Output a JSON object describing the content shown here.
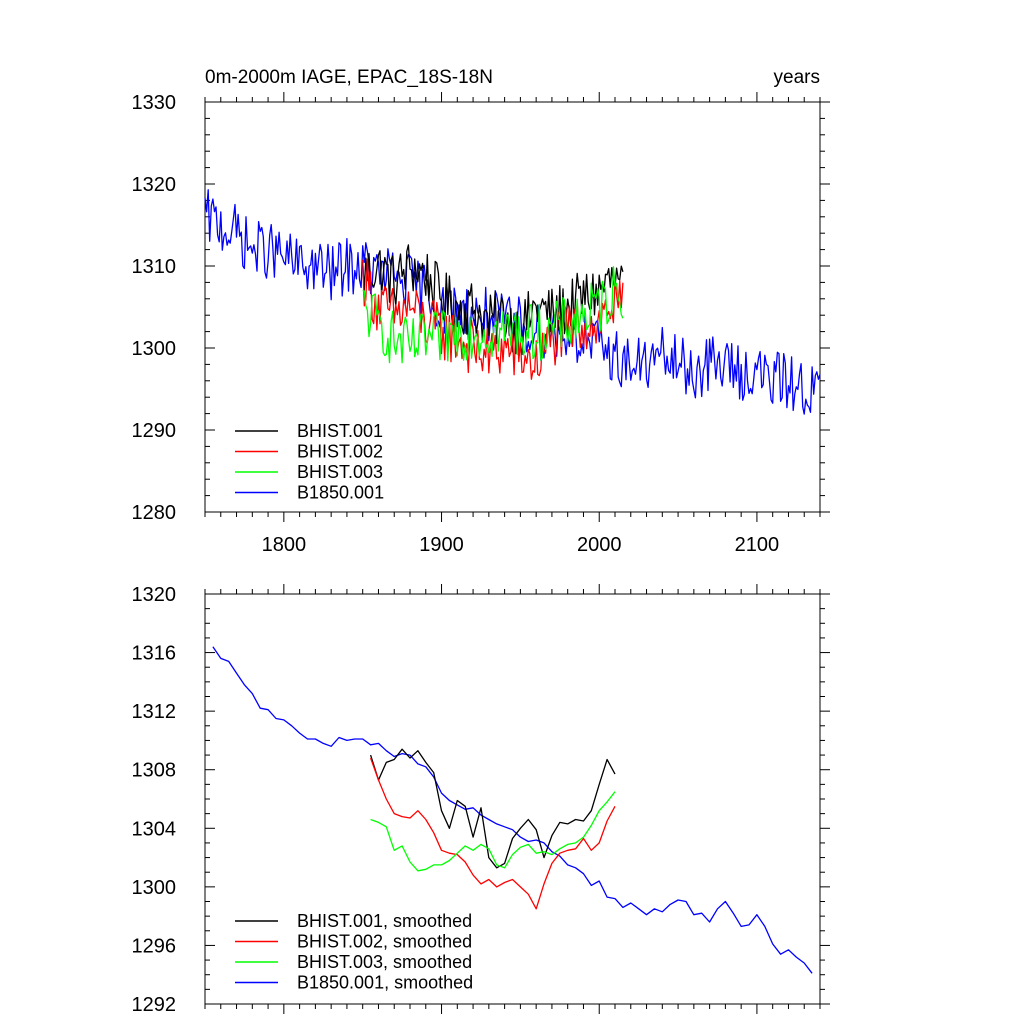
{
  "chart_data": [
    {
      "type": "line",
      "title": "0m-2000m IAGE, EPAC_18S-18N",
      "units": "years",
      "xlim": [
        1750,
        2140
      ],
      "ylim": [
        1280,
        1330
      ],
      "x_ticks": [
        1800,
        1900,
        2000,
        2100
      ],
      "x_tick_labels": [
        "1800",
        "1900",
        "2000",
        "2100"
      ],
      "y_ticks": [
        1280,
        1290,
        1300,
        1310,
        1320,
        1330
      ],
      "y_tick_labels": [
        "1280",
        "1290",
        "1300",
        "1310",
        "1320",
        "1330"
      ],
      "legend_position": "bottom-left",
      "series": [
        {
          "name": "BHIST.001",
          "color": "#000000",
          "x": [
            1850,
            1860,
            1870,
            1880,
            1890,
            1900,
            1910,
            1920,
            1930,
            1940,
            1950,
            1960,
            1970,
            1980,
            1990,
            2000,
            2005,
            2010,
            2015
          ],
          "y": [
            1309,
            1310,
            1308,
            1310,
            1309,
            1306,
            1305,
            1305,
            1303,
            1304,
            1302,
            1305,
            1304,
            1305,
            1306,
            1307,
            1308,
            1308,
            1307
          ]
        },
        {
          "name": "BHIST.002",
          "color": "#ff0000",
          "x": [
            1850,
            1860,
            1870,
            1880,
            1890,
            1900,
            1910,
            1920,
            1930,
            1940,
            1950,
            1960,
            1970,
            1980,
            1990,
            2000,
            2005,
            2010,
            2015
          ],
          "y": [
            1309,
            1305,
            1304,
            1305,
            1303,
            1302,
            1301,
            1300,
            1299,
            1300,
            1299,
            1298,
            1301,
            1302,
            1303,
            1303,
            1305,
            1305,
            1305
          ]
        },
        {
          "name": "BHIST.003",
          "color": "#00ff00",
          "x": [
            1850,
            1860,
            1870,
            1880,
            1890,
            1900,
            1910,
            1920,
            1930,
            1940,
            1950,
            1960,
            1970,
            1980,
            1990,
            2000,
            2005,
            2010,
            2015
          ],
          "y": [
            1305,
            1303,
            1301,
            1300,
            1301,
            1301,
            1302,
            1302,
            1302,
            1302,
            1302,
            1302,
            1302,
            1303,
            1304,
            1305,
            1306,
            1307,
            1307
          ]
        },
        {
          "name": "B1850.001",
          "color": "#0000ff",
          "x": [
            1750,
            1760,
            1770,
            1780,
            1790,
            1800,
            1810,
            1820,
            1830,
            1840,
            1850,
            1860,
            1870,
            1880,
            1890,
            1900,
            1910,
            1920,
            1930,
            1940,
            1950,
            1960,
            1970,
            1980,
            1990,
            2000,
            2010,
            2020,
            2030,
            2040,
            2050,
            2060,
            2070,
            2080,
            2090,
            2100,
            2110,
            2120,
            2130,
            2140
          ],
          "y": [
            1316,
            1315,
            1314,
            1312,
            1312,
            1311,
            1310,
            1310,
            1309,
            1310,
            1310,
            1309,
            1309,
            1308,
            1307,
            1305,
            1305,
            1304,
            1304,
            1303,
            1303,
            1302,
            1302,
            1302,
            1301,
            1300,
            1299,
            1298,
            1298,
            1299,
            1298,
            1297,
            1298,
            1298,
            1297,
            1297,
            1296,
            1296,
            1295,
            1295
          ]
        }
      ]
    },
    {
      "type": "line",
      "xlim": [
        1750,
        2140
      ],
      "ylim": [
        1292,
        1320
      ],
      "x_ticks": [
        1800,
        1900,
        2000,
        2100
      ],
      "y_ticks": [
        1292,
        1296,
        1300,
        1304,
        1308,
        1312,
        1316,
        1320
      ],
      "y_tick_labels": [
        "1292",
        "1296",
        "1300",
        "1304",
        "1308",
        "1312",
        "1316",
        "1320"
      ],
      "legend_position": "bottom-left",
      "series": [
        {
          "name": "BHIST.001, smoothed",
          "color": "#000000",
          "x": [
            1855,
            1860,
            1865,
            1870,
            1875,
            1880,
            1885,
            1890,
            1895,
            1900,
            1905,
            1910,
            1915,
            1920,
            1925,
            1930,
            1935,
            1940,
            1945,
            1950,
            1955,
            1960,
            1965,
            1970,
            1975,
            1980,
            1985,
            1990,
            1995,
            2000,
            2005,
            2010
          ],
          "y": [
            1309,
            1307.3,
            1308.5,
            1308.7,
            1309.4,
            1308.8,
            1309.3,
            1308.5,
            1307.8,
            1305.2,
            1304,
            1305.9,
            1305.5,
            1303.4,
            1305.4,
            1302,
            1301.3,
            1301.6,
            1303.3,
            1304,
            1304.6,
            1303.9,
            1302,
            1303.5,
            1304.4,
            1304.3,
            1304.6,
            1304.5,
            1305.2,
            1307,
            1308.7,
            1307.7
          ]
        },
        {
          "name": "BHIST.002, smoothed",
          "color": "#ff0000",
          "x": [
            1855,
            1860,
            1865,
            1870,
            1875,
            1880,
            1885,
            1890,
            1895,
            1900,
            1905,
            1910,
            1915,
            1920,
            1925,
            1930,
            1935,
            1940,
            1945,
            1950,
            1955,
            1960,
            1965,
            1970,
            1975,
            1980,
            1985,
            1990,
            1995,
            2000,
            2005,
            2010
          ],
          "y": [
            1308.8,
            1307.3,
            1306,
            1305,
            1304.8,
            1304.7,
            1305.2,
            1304.6,
            1303.7,
            1302.5,
            1302.3,
            1302.2,
            1301.7,
            1300.8,
            1300.2,
            1300.5,
            1300,
            1300.3,
            1300.5,
            1300,
            1299.5,
            1298.5,
            1300.2,
            1301.6,
            1302.3,
            1302.5,
            1302.6,
            1303.3,
            1302.5,
            1303,
            1304.5,
            1305.5
          ]
        },
        {
          "name": "BHIST.003, smoothed",
          "color": "#00ff00",
          "x": [
            1855,
            1860,
            1865,
            1870,
            1875,
            1880,
            1885,
            1890,
            1895,
            1900,
            1905,
            1910,
            1915,
            1920,
            1925,
            1930,
            1935,
            1940,
            1945,
            1950,
            1955,
            1960,
            1965,
            1970,
            1975,
            1980,
            1985,
            1990,
            1995,
            2000,
            2005,
            2010
          ],
          "y": [
            1304.6,
            1304.4,
            1304.1,
            1302.5,
            1302.8,
            1301.7,
            1301.1,
            1301.2,
            1301.5,
            1301.5,
            1301.8,
            1302.3,
            1302.8,
            1302.5,
            1302.9,
            1302.6,
            1301.5,
            1301.3,
            1302.2,
            1302.7,
            1302.9,
            1302.3,
            1302.4,
            1302.2,
            1302.6,
            1302.9,
            1303,
            1303.4,
            1304.2,
            1305.2,
            1305.8,
            1306.5
          ]
        },
        {
          "name": "B1850.001, smoothed",
          "color": "#0000ff",
          "x": [
            1755,
            1760,
            1765,
            1770,
            1775,
            1780,
            1785,
            1790,
            1795,
            1800,
            1805,
            1810,
            1815,
            1820,
            1825,
            1830,
            1835,
            1840,
            1845,
            1850,
            1855,
            1860,
            1865,
            1870,
            1875,
            1880,
            1885,
            1890,
            1895,
            1900,
            1905,
            1910,
            1915,
            1920,
            1925,
            1930,
            1935,
            1940,
            1945,
            1950,
            1955,
            1960,
            1965,
            1970,
            1975,
            1980,
            1985,
            1990,
            1995,
            2000,
            2005,
            2010,
            2015,
            2020,
            2025,
            2030,
            2035,
            2040,
            2045,
            2050,
            2055,
            2060,
            2065,
            2070,
            2075,
            2080,
            2085,
            2090,
            2095,
            2100,
            2105,
            2110,
            2115,
            2120,
            2125,
            2130,
            2135
          ],
          "y": [
            1316.4,
            1315.6,
            1315.4,
            1314.6,
            1313.8,
            1313.2,
            1312.2,
            1312.1,
            1311.5,
            1311.4,
            1311,
            1310.5,
            1310.1,
            1310.1,
            1309.8,
            1309.6,
            1310.2,
            1310,
            1310.1,
            1310.1,
            1309.7,
            1309.8,
            1309.3,
            1308.9,
            1309.1,
            1309,
            1308.4,
            1308.2,
            1307.5,
            1306.4,
            1305.9,
            1305.6,
            1305.3,
            1305.4,
            1304.9,
            1304.6,
            1304.3,
            1304.1,
            1303.9,
            1303.4,
            1303.1,
            1303.2,
            1303,
            1302.4,
            1302.1,
            1301.5,
            1301.3,
            1300.9,
            1300.1,
            1300.4,
            1299.3,
            1299.2,
            1298.6,
            1298.9,
            1298.5,
            1298.1,
            1298.5,
            1298.3,
            1298.8,
            1299.1,
            1299,
            1298.1,
            1298.2,
            1297.6,
            1298.5,
            1299,
            1298.2,
            1297.3,
            1297.4,
            1298.1,
            1297.3,
            1296.1,
            1295.4,
            1295.7,
            1295.2,
            1294.8,
            1294.1
          ]
        }
      ]
    }
  ]
}
